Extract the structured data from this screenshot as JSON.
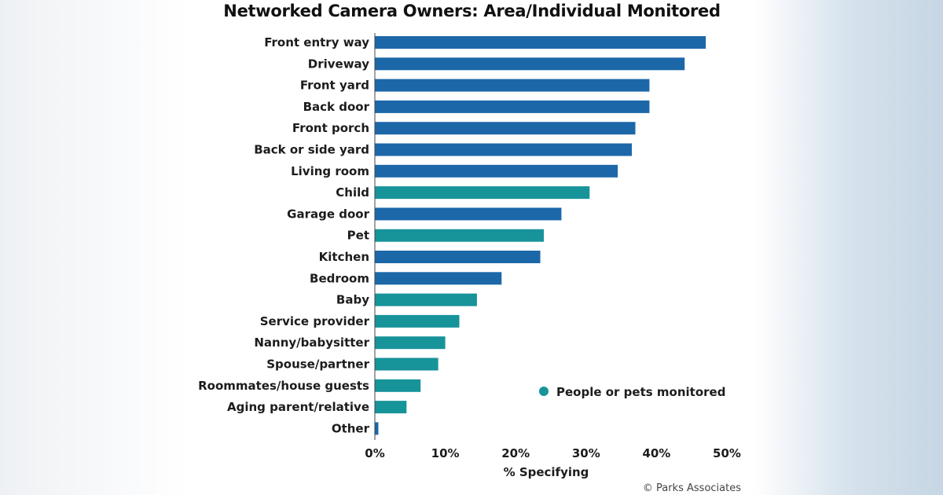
{
  "chart_data": {
    "type": "bar",
    "orientation": "horizontal",
    "title": "Networked Camera Owners: Area/Individual Monitored",
    "xlabel": "% Specifying",
    "ylabel": "",
    "xlim": [
      0,
      50
    ],
    "x_ticks": [
      "0%",
      "10%",
      "20%",
      "30%",
      "40%",
      "50%"
    ],
    "categories": [
      "Front entry way",
      "Driveway",
      "Front yard",
      "Back door",
      "Front porch",
      "Back or side yard",
      "Living room",
      "Child",
      "Garage door",
      "Pet",
      "Kitchen",
      "Bedroom",
      "Baby",
      "Service provider",
      "Nanny/babysitter",
      "Spouse/partner",
      "Roommates/house guests",
      "Aging parent/relative",
      "Other"
    ],
    "values": [
      47,
      44,
      39,
      39,
      37,
      36.5,
      34.5,
      30.5,
      26.5,
      24,
      23.5,
      18,
      14.5,
      12,
      10,
      9,
      6.5,
      4.5,
      0.5
    ],
    "people_or_pets": [
      false,
      false,
      false,
      false,
      false,
      false,
      false,
      true,
      false,
      true,
      false,
      false,
      true,
      true,
      true,
      true,
      true,
      true,
      false
    ],
    "legend": [
      {
        "label": "People or pets monitored",
        "color": "#17939a"
      }
    ],
    "legend_position": "lower-right",
    "grid": false,
    "colors": {
      "area": "#1c67a8",
      "people_or_pets": "#17939a"
    },
    "credit": "© Parks Associates"
  }
}
